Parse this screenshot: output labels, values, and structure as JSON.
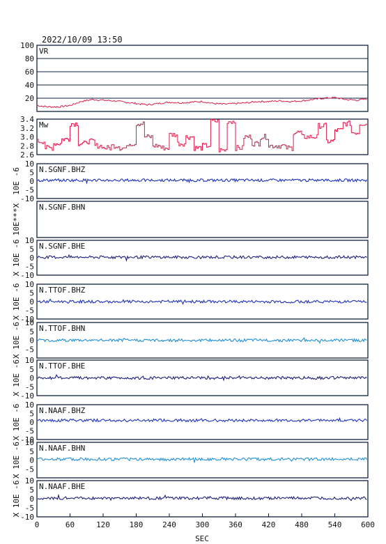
{
  "timestamp": "2022/10/09  13:50",
  "colors": {
    "frame": "#0f1f3d",
    "vr_line": "#d81c4b",
    "mw_line": "#d81c4b",
    "wave_dark": "#1b1f7a",
    "wave_blue": "#1c31b8",
    "wave_light": "#1f8fd6"
  },
  "chart_data": [
    {
      "type": "line",
      "label": "VR",
      "ylim": [
        0,
        100
      ],
      "yticks": [
        "100",
        "80",
        "60",
        "40",
        "20"
      ],
      "grid": true,
      "xlim": [
        0,
        600
      ],
      "series": [
        {
          "x": [
            0,
            20,
            40,
            60,
            80,
            100,
            120,
            140,
            160,
            180,
            200,
            220,
            240,
            260,
            280,
            300,
            320,
            340,
            360,
            380,
            400,
            420,
            440,
            460,
            480,
            500,
            520,
            540,
            560,
            580,
            600
          ],
          "values": [
            9,
            7,
            7,
            9,
            15,
            18,
            17,
            16,
            14,
            12,
            10,
            12,
            14,
            13,
            14,
            15,
            12,
            11,
            12,
            13,
            15,
            15,
            16,
            15,
            16,
            18,
            20,
            21,
            18,
            17,
            19
          ]
        }
      ]
    },
    {
      "type": "line",
      "label": "Mw",
      "ylim": [
        2.6,
        3.4
      ],
      "yticks": [
        "3.4",
        "3.2",
        "3.0",
        "2.8",
        "2.6"
      ],
      "grid": false,
      "xlim": [
        0,
        600
      ],
      "series": [
        {
          "x": [
            0,
            15,
            30,
            45,
            60,
            75,
            90,
            105,
            120,
            135,
            150,
            165,
            180,
            195,
            210,
            225,
            240,
            255,
            270,
            285,
            300,
            315,
            330,
            345,
            360,
            375,
            390,
            405,
            420,
            435,
            450,
            465,
            480,
            495,
            510,
            525,
            540,
            555,
            570,
            585,
            600
          ],
          "values": [
            2.9,
            2.75,
            2.85,
            2.95,
            3.3,
            2.85,
            2.9,
            2.8,
            2.75,
            2.8,
            2.75,
            2.85,
            3.3,
            3.0,
            2.8,
            2.75,
            3.05,
            2.85,
            3.0,
            2.75,
            2.8,
            3.35,
            2.7,
            3.35,
            2.75,
            3.0,
            2.85,
            3.0,
            2.8,
            2.8,
            2.75,
            3.1,
            3.0,
            3.0,
            3.25,
            2.9,
            3.15,
            3.3,
            3.1,
            3.3,
            2.9
          ]
        }
      ]
    },
    {
      "type": "line",
      "label": "N.SGNF.BHZ",
      "ylabel": "10E -6",
      "ylim": [
        -10,
        10
      ],
      "yticks": [
        "10",
        "5",
        "0",
        "-5",
        "-10"
      ],
      "color": "wave_blue",
      "series": [
        {
          "x": [
            0,
            600
          ],
          "values": [
            0.5,
            0.5
          ]
        }
      ]
    },
    {
      "type": "line",
      "label": "N.SGNF.BHN",
      "ylabel": "10E***X",
      "ylim": [
        -10,
        10
      ],
      "yticks": [],
      "color": "none",
      "series": []
    },
    {
      "type": "line",
      "label": "N.SGNF.BHE",
      "ylabel": "X 10E -6",
      "ylim": [
        -10,
        10
      ],
      "yticks": [
        "10",
        "5",
        "0",
        "-5",
        "-10"
      ],
      "color": "wave_dark",
      "series": [
        {
          "x": [
            0,
            600
          ],
          "values": [
            0.3,
            0.3
          ]
        }
      ]
    },
    {
      "type": "line",
      "label": "N.TTOF.BHZ",
      "ylabel": "X 10E -6",
      "ylim": [
        -10,
        10
      ],
      "yticks": [
        "10",
        "5",
        "0",
        "-5",
        "-10"
      ],
      "color": "wave_blue",
      "series": [
        {
          "x": [
            0,
            600
          ],
          "values": [
            0.0,
            0.0
          ]
        }
      ]
    },
    {
      "type": "line",
      "label": "N.TTOF.BHN",
      "ylabel": "X 10E -6",
      "ylim": [
        -10,
        10
      ],
      "yticks": [
        "10",
        "5",
        "0",
        "-5"
      ],
      "color": "wave_light",
      "series": [
        {
          "x": [
            0,
            600
          ],
          "values": [
            0.0,
            0.0
          ]
        }
      ]
    },
    {
      "type": "line",
      "label": "N.TTOF.BHE",
      "ylabel": "X 10E -6",
      "ylim": [
        -10,
        10
      ],
      "yticks": [
        "10",
        "5",
        "0",
        "-5",
        "-10"
      ],
      "color": "wave_dark",
      "series": [
        {
          "x": [
            0,
            600
          ],
          "values": [
            0.0,
            0.0
          ]
        }
      ]
    },
    {
      "type": "line",
      "label": "N.NAAF.BHZ",
      "ylabel": "X 10E -6",
      "ylim": [
        -10,
        10
      ],
      "yticks": [
        "10",
        "5",
        "0",
        "-5",
        "-10"
      ],
      "color": "wave_blue",
      "series": [
        {
          "x": [
            0,
            600
          ],
          "values": [
            1.0,
            1.0
          ]
        }
      ]
    },
    {
      "type": "line",
      "label": "N.NAAF.BHN",
      "ylabel": "X 10E -6",
      "ylim": [
        -10,
        10
      ],
      "yticks": [
        "10",
        "5",
        "0",
        "-5"
      ],
      "color": "wave_light",
      "series": [
        {
          "x": [
            0,
            600
          ],
          "values": [
            0.5,
            0.5
          ]
        }
      ]
    },
    {
      "type": "line",
      "label": "N.NAAF.BHE",
      "ylabel": "X 10E -6",
      "ylim": [
        -10,
        10
      ],
      "yticks": [
        "10",
        "5",
        "0",
        "-5",
        "-10"
      ],
      "color": "wave_dark",
      "series": [
        {
          "x": [
            0,
            600
          ],
          "values": [
            0.3,
            0.3
          ]
        }
      ]
    }
  ],
  "xaxis": {
    "label": "SEC",
    "ticks": [
      "0",
      "60",
      "120",
      "180",
      "240",
      "300",
      "360",
      "420",
      "480",
      "540",
      "600"
    ],
    "range": [
      0,
      600
    ]
  }
}
